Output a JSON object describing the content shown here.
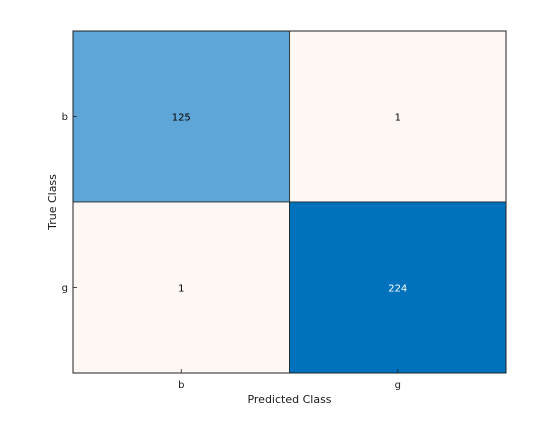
{
  "chart_data": {
    "type": "heatmap",
    "title": "",
    "xlabel": "Predicted Class",
    "ylabel": "True Class",
    "x_categories": [
      "b",
      "g"
    ],
    "y_categories": [
      "b",
      "g"
    ],
    "values": [
      [
        125,
        1
      ],
      [
        1,
        224
      ]
    ],
    "colors": {
      "low": "#fff7f4",
      "mid": "#6aadda",
      "high": "#0072bd",
      "cell_border": "#222222",
      "text_dark": "#000000",
      "text_light": "#ffffff"
    },
    "grid": true,
    "legend": "none"
  }
}
